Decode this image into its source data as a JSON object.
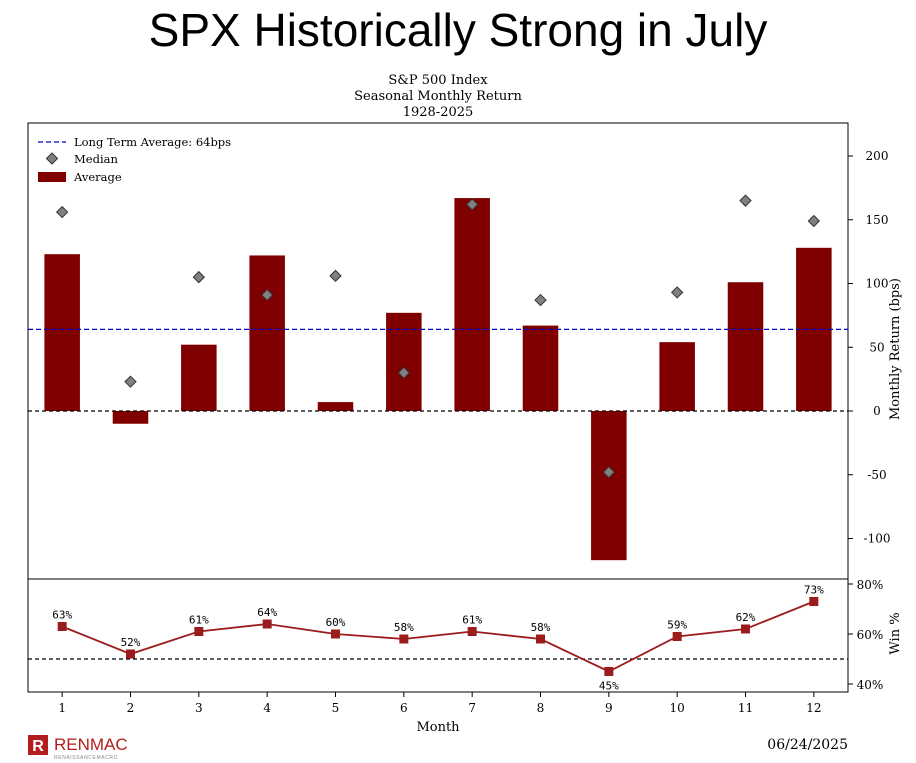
{
  "slide": {
    "title": "SPX Historically Strong in July",
    "date": "06/24/2025",
    "logo": {
      "name": "RENMAC",
      "tagline": "RENAISSANCEMACRO",
      "mark": "R",
      "color": "#b31d1d"
    }
  },
  "chart_data": [
    {
      "type": "bar",
      "title": "S&P 500 Index",
      "subtitle": [
        "Seasonal Monthly Return",
        "1928-2025"
      ],
      "ylabel": "Monthly Return (bps)",
      "ylim": [
        -117,
        222
      ],
      "yticks": [
        200,
        150,
        100,
        50,
        0,
        -50,
        -100
      ],
      "categories": [
        "1",
        "2",
        "3",
        "4",
        "5",
        "6",
        "7",
        "8",
        "9",
        "10",
        "11",
        "12"
      ],
      "series": [
        {
          "name": "Average",
          "kind": "bar",
          "color": "#800000",
          "values": [
            123,
            -10,
            52,
            122,
            7,
            77,
            167,
            67,
            -117,
            54,
            101,
            128
          ]
        },
        {
          "name": "Median",
          "kind": "marker",
          "color": "#808080",
          "values": [
            156,
            23,
            105,
            91,
            106,
            30,
            162,
            87,
            -48,
            93,
            165,
            149
          ]
        }
      ],
      "reference_line": {
        "name": "Long Term Average: 64bps",
        "value": 64,
        "color": "#0000cc"
      },
      "zero_line": 0,
      "legend": "top-left",
      "legend_labels": [
        "Long Term Average: 64bps",
        "Median",
        "Average"
      ]
    },
    {
      "type": "line",
      "ylabel": "Win %",
      "xlabel": "Month",
      "ylim": [
        38,
        80
      ],
      "yticks": [
        "80%",
        "60%",
        "40%"
      ],
      "ytick_values": [
        80,
        60,
        40
      ],
      "reference_line": 50,
      "categories": [
        "1",
        "2",
        "3",
        "4",
        "5",
        "6",
        "7",
        "8",
        "9",
        "10",
        "11",
        "12"
      ],
      "values": [
        63,
        52,
        61,
        64,
        60,
        58,
        61,
        58,
        45,
        59,
        62,
        73
      ],
      "labels": [
        "63%",
        "52%",
        "61%",
        "64%",
        "60%",
        "58%",
        "61%",
        "58%",
        "45%",
        "59%",
        "62%",
        "73%"
      ],
      "color": "#9b1c1c"
    }
  ]
}
